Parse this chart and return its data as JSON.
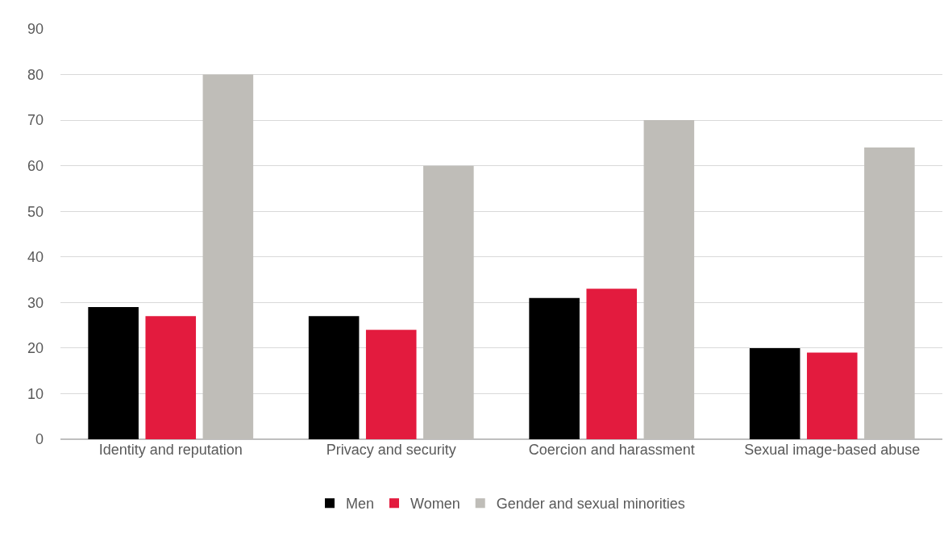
{
  "chart_data": {
    "type": "bar",
    "categories": [
      "Identity and reputation",
      "Privacy and security",
      "Coercion and harassment",
      "Sexual image-based abuse"
    ],
    "series": [
      {
        "name": "Men",
        "color": "#000000",
        "values": [
          29,
          27,
          31,
          20
        ]
      },
      {
        "name": "Women",
        "color": "#e31b3e",
        "values": [
          27,
          24,
          33,
          19
        ]
      },
      {
        "name": "Gender and sexual minorities",
        "color": "#bfbdb8",
        "values": [
          80,
          60,
          70,
          64
        ]
      }
    ],
    "ylim": [
      0,
      90
    ],
    "yticks": [
      0,
      10,
      20,
      30,
      40,
      50,
      60,
      70,
      80,
      90
    ],
    "grid": "y",
    "legend": "bottom"
  }
}
